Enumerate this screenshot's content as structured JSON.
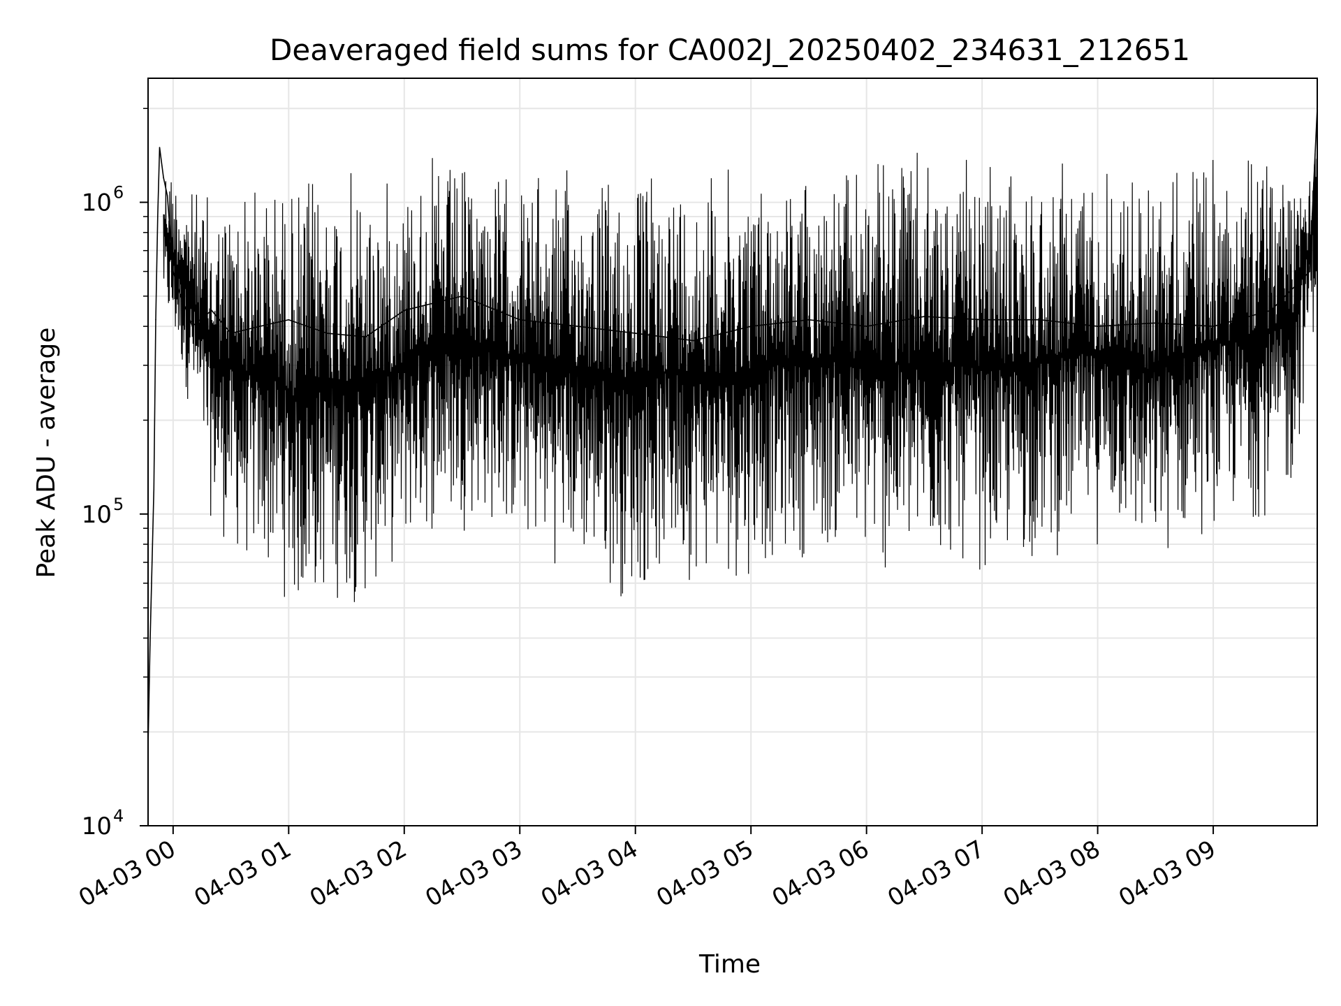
{
  "chart_data": {
    "type": "line",
    "title": "Deaveraged field sums for CA002J_20250402_234631_212651",
    "xlabel": "Time",
    "ylabel": "Peak ADU - average",
    "yscale": "log",
    "ylim": [
      10000,
      2500000
    ],
    "xlim": [
      "04-02 23:47",
      "04-03 09:54"
    ],
    "grid": true,
    "line_color": "#000000",
    "x_ticks": [
      "04-03 00",
      "04-03 01",
      "04-03 02",
      "04-03 03",
      "04-03 04",
      "04-03 05",
      "04-03 06",
      "04-03 07",
      "04-03 08",
      "04-03 09"
    ],
    "y_ticks": [
      {
        "value": 10000,
        "base": "10",
        "exp": "4"
      },
      {
        "value": 100000,
        "base": "10",
        "exp": "5"
      },
      {
        "value": 1000000,
        "base": "10",
        "exp": "6"
      }
    ],
    "series": [
      {
        "points": [
          [
            "04-02 23:47",
            18000
          ],
          [
            "04-02 23:48",
            38000
          ],
          [
            "04-02 23:50",
            120000
          ],
          [
            "04-02 23:51",
            420000
          ],
          [
            "04-02 23:52",
            900000
          ],
          [
            "04-02 23:53",
            1500000
          ],
          [
            "04-02 23:55",
            1200000
          ],
          [
            "04-02 23:57",
            1050000
          ],
          [
            "04-03 00:00",
            600000
          ],
          [
            "04-03 00:04",
            500000
          ],
          [
            "04-03 00:10",
            400000
          ],
          [
            "04-03 00:20",
            450000
          ],
          [
            "04-03 00:30",
            380000
          ],
          [
            "04-03 00:45",
            400000
          ],
          [
            "04-03 01:00",
            420000
          ],
          [
            "04-03 01:20",
            380000
          ],
          [
            "04-03 01:40",
            370000
          ],
          [
            "04-03 02:00",
            450000
          ],
          [
            "04-03 02:30",
            500000
          ],
          [
            "04-03 03:00",
            420000
          ],
          [
            "04-03 03:30",
            400000
          ],
          [
            "04-03 04:00",
            380000
          ],
          [
            "04-03 04:30",
            360000
          ],
          [
            "04-03 05:00",
            400000
          ],
          [
            "04-03 05:30",
            420000
          ],
          [
            "04-03 06:00",
            400000
          ],
          [
            "04-03 06:30",
            430000
          ],
          [
            "04-03 07:00",
            420000
          ],
          [
            "04-03 07:30",
            420000
          ],
          [
            "04-03 08:00",
            400000
          ],
          [
            "04-03 08:30",
            410000
          ],
          [
            "04-03 09:00",
            400000
          ],
          [
            "04-03 09:30",
            450000
          ],
          [
            "04-03 09:50",
            600000
          ],
          [
            "04-03 09:54",
            2000000
          ]
        ],
        "envelope": [
          [
            "04-02 23:55",
            420000,
            1500000
          ],
          [
            "04-03 00:10",
            200000,
            1150000
          ],
          [
            "04-03 00:20",
            90000,
            1100000
          ],
          [
            "04-03 00:35",
            65000,
            1250000
          ],
          [
            "04-03 00:55",
            55000,
            1300000
          ],
          [
            "04-03 01:05",
            42000,
            1250000
          ],
          [
            "04-03 01:20",
            50000,
            1400000
          ],
          [
            "04-03 01:40",
            48000,
            1300000
          ],
          [
            "04-03 01:50",
            60000,
            1250000
          ],
          [
            "04-03 02:10",
            80000,
            1450000
          ],
          [
            "04-03 02:40",
            90000,
            1350000
          ],
          [
            "04-03 03:10",
            70000,
            1300000
          ],
          [
            "04-03 03:40",
            60000,
            1350000
          ],
          [
            "04-03 03:55",
            50000,
            1300000
          ],
          [
            "04-03 04:20",
            60000,
            1400000
          ],
          [
            "04-03 04:50",
            58000,
            1350000
          ],
          [
            "04-03 05:20",
            70000,
            1350000
          ],
          [
            "04-03 05:50",
            72000,
            1350000
          ],
          [
            "04-03 06:12",
            57000,
            1600000
          ],
          [
            "04-03 06:40",
            65000,
            1400000
          ],
          [
            "04-03 07:10",
            62000,
            1350000
          ],
          [
            "04-03 07:40",
            70000,
            1450000
          ],
          [
            "04-03 08:10",
            80000,
            1450000
          ],
          [
            "04-03 08:25",
            60000,
            1350000
          ],
          [
            "04-03 08:50",
            80000,
            1450000
          ],
          [
            "04-03 09:15",
            90000,
            1500000
          ],
          [
            "04-03 09:40",
            100000,
            1600000
          ],
          [
            "04-03 09:54",
            450000,
            2000000
          ]
        ]
      }
    ]
  }
}
